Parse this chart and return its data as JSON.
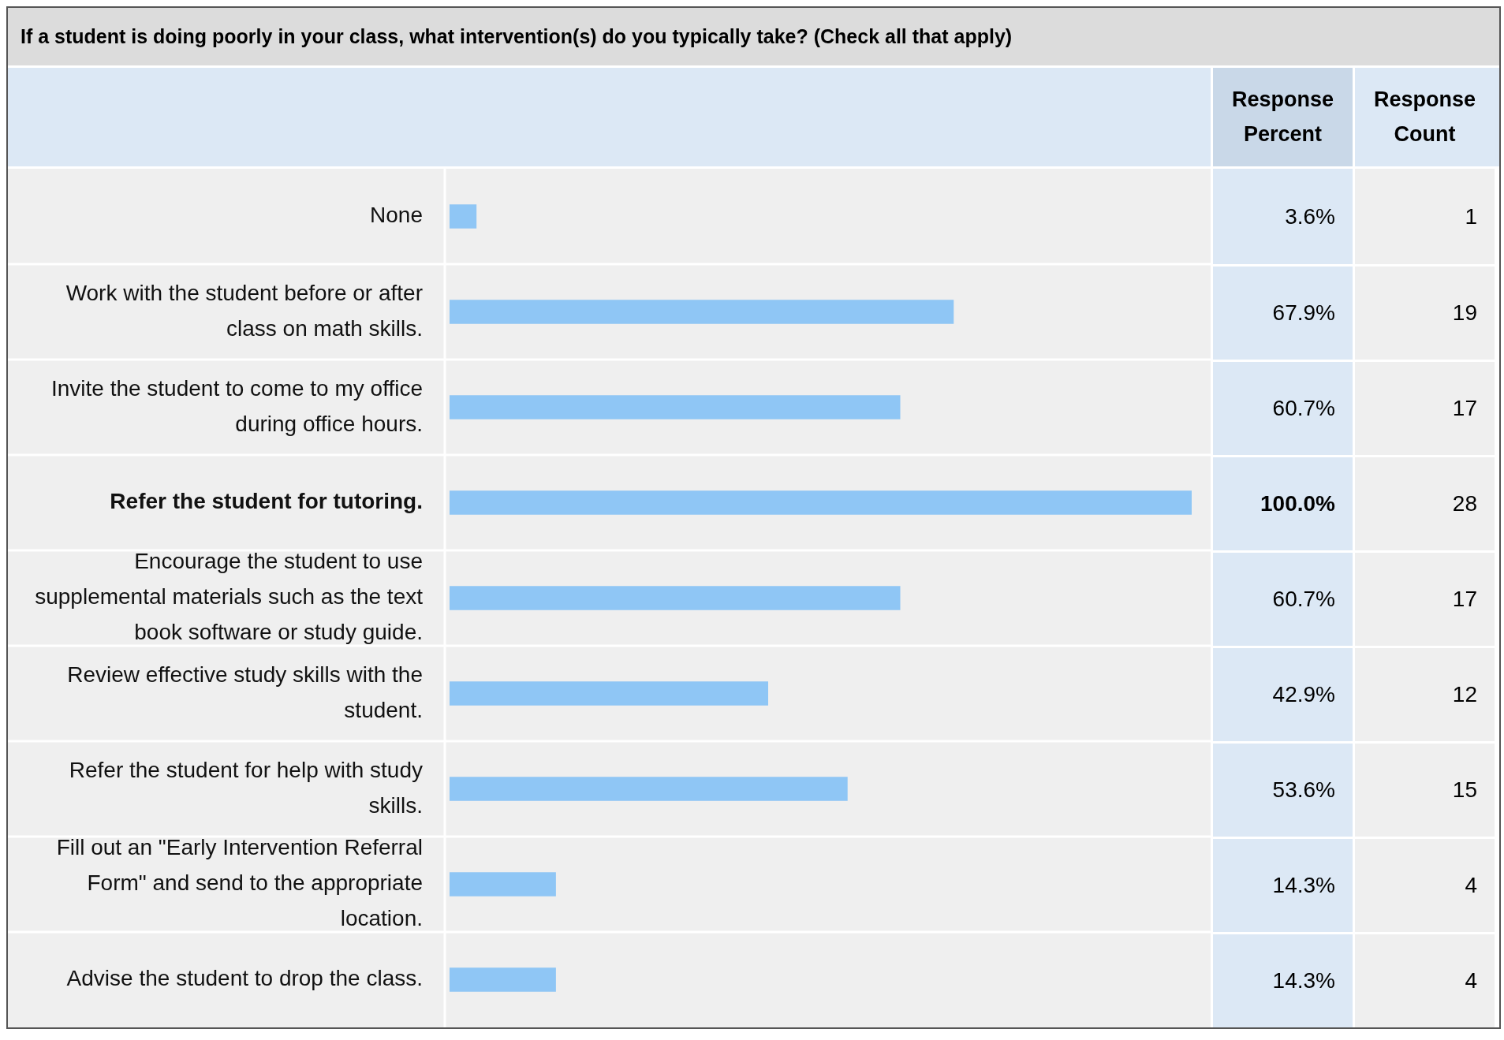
{
  "chart_data": {
    "type": "bar",
    "orientation": "horizontal",
    "title": "If a student is doing poorly in your class, what intervention(s) do you typically take? (Check all that apply)",
    "categories": [
      "None",
      "Work with the student before or after class on math skills.",
      "Invite the student to come to my office during office hours.",
      "Refer the student for tutoring.",
      "Encourage the student to use supplemental materials such as the text book software or study guide.",
      "Review effective study skills with the student.",
      "Refer the student for help with study skills.",
      "Fill out an \"Early Intervention Referral Form\" and send to the appropriate location.",
      "Advise the student to drop the class."
    ],
    "values": [
      3.6,
      67.9,
      60.7,
      100.0,
      60.7,
      42.9,
      53.6,
      14.3,
      14.3
    ],
    "value_labels": [
      "3.6%",
      "67.9%",
      "60.7%",
      "100.0%",
      "60.7%",
      "42.9%",
      "53.6%",
      "14.3%",
      "14.3%"
    ],
    "color": "#8fc6f5",
    "xlim": [
      0,
      100
    ],
    "tick_labels": "y",
    "annotations": [
      "Response Percent",
      "Response Count",
      "1",
      "19",
      "17",
      "28",
      "17",
      "12",
      "15",
      "4",
      "4"
    ]
  }
}
